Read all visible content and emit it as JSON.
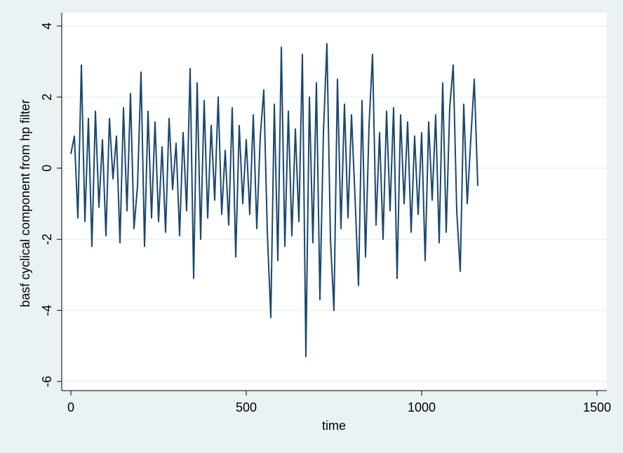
{
  "chart_data": {
    "type": "line",
    "x_label": "time",
    "y_label": "basf cyclical component from hp filter",
    "x": [
      0,
      10,
      20,
      30,
      40,
      50,
      60,
      70,
      80,
      90,
      100,
      110,
      120,
      130,
      140,
      150,
      160,
      170,
      180,
      190,
      200,
      210,
      220,
      230,
      240,
      250,
      260,
      270,
      280,
      290,
      300,
      310,
      320,
      330,
      340,
      350,
      360,
      370,
      380,
      390,
      400,
      410,
      420,
      430,
      440,
      450,
      460,
      470,
      480,
      490,
      500,
      510,
      520,
      530,
      540,
      550,
      560,
      570,
      580,
      590,
      600,
      610,
      620,
      630,
      640,
      650,
      660,
      670,
      680,
      690,
      700,
      710,
      720,
      730,
      740,
      750,
      760,
      770,
      780,
      790,
      800,
      810,
      820,
      830,
      840,
      850,
      860,
      870,
      880,
      890,
      900,
      910,
      920,
      930,
      940,
      950,
      960,
      970,
      980,
      990,
      1000,
      1010,
      1020,
      1030,
      1040,
      1050,
      1060,
      1070,
      1080,
      1090,
      1100,
      1110,
      1120,
      1130,
      1140,
      1150,
      1160
    ],
    "series": [
      {
        "name": "basf cyclical component from hp filter",
        "color": "#1a476f",
        "values": [
          0.4,
          0.9,
          -1.4,
          2.9,
          -1.5,
          1.4,
          -2.2,
          1.6,
          -1.1,
          0.8,
          -1.9,
          1.4,
          -0.3,
          0.9,
          -2.1,
          1.7,
          -1.2,
          2.1,
          -1.7,
          -0.5,
          2.7,
          -2.2,
          1.6,
          -1.4,
          1.3,
          -1.5,
          0.6,
          -1.8,
          1.4,
          -0.6,
          0.7,
          -1.9,
          1.0,
          -1.2,
          2.8,
          -3.1,
          2.4,
          -2.0,
          1.9,
          -1.4,
          1.2,
          -0.9,
          2.0,
          -1.3,
          0.5,
          -1.6,
          1.7,
          -2.5,
          1.2,
          -1.0,
          0.8,
          -1.3,
          1.5,
          -1.7,
          0.9,
          2.2,
          -1.8,
          -4.2,
          1.8,
          -2.6,
          3.4,
          -2.2,
          1.6,
          -1.9,
          1.1,
          -1.5,
          3.2,
          -5.3,
          2.0,
          -2.1,
          2.4,
          -3.7,
          1.0,
          3.5,
          -2.0,
          -4.0,
          2.5,
          -1.7,
          1.8,
          -1.4,
          1.5,
          -0.8,
          -3.3,
          1.9,
          -2.5,
          1.2,
          3.2,
          -1.6,
          1.0,
          -2.0,
          1.6,
          -1.2,
          1.7,
          -3.1,
          1.5,
          -1.0,
          1.3,
          -1.8,
          0.9,
          -1.3,
          1.0,
          -2.6,
          1.3,
          -0.9,
          1.5,
          -2.1,
          2.4,
          -1.8,
          1.7,
          2.9,
          -1.2,
          -2.9,
          1.8,
          -1.0,
          0.8,
          2.5,
          -0.5
        ]
      }
    ],
    "xlim": [
      0,
      1500
    ],
    "xticks": [
      0,
      500,
      1000,
      1500
    ],
    "ylim": [
      -6,
      4
    ],
    "yticks": [
      -6,
      -4,
      -2,
      0,
      2,
      4
    ],
    "grid": true
  }
}
